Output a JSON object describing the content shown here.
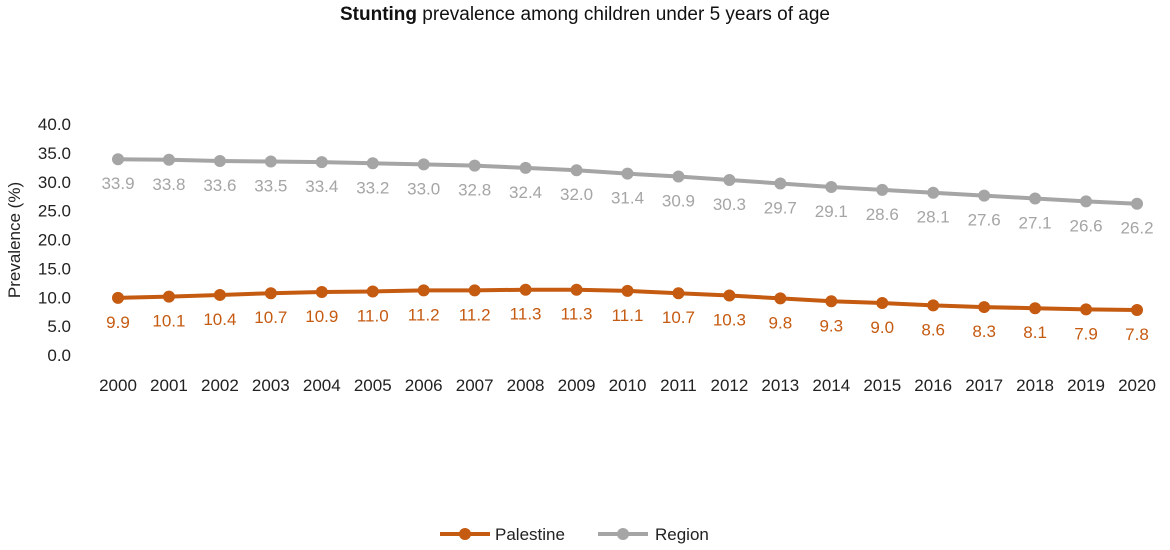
{
  "chart_data": {
    "type": "line",
    "title_bold": "Stunting",
    "title_rest": " prevalence among children under 5 years of age",
    "ylabel": "Prevalence (%)",
    "xlabel": "",
    "ylim": [
      0,
      40
    ],
    "yticks": [
      "0.0",
      "5.0",
      "10.0",
      "15.0",
      "20.0",
      "25.0",
      "30.0",
      "35.0",
      "40.0"
    ],
    "grid": false,
    "legend_position": "bottom-center",
    "x": [
      "2000",
      "2001",
      "2002",
      "2003",
      "2004",
      "2005",
      "2006",
      "2007",
      "2008",
      "2009",
      "2010",
      "2011",
      "2012",
      "2013",
      "2014",
      "2015",
      "2016",
      "2017",
      "2018",
      "2019",
      "2020"
    ],
    "series": [
      {
        "name": "Palestine",
        "color": "#C55A11",
        "values": [
          9.9,
          10.1,
          10.4,
          10.7,
          10.9,
          11.0,
          11.2,
          11.2,
          11.3,
          11.3,
          11.1,
          10.7,
          10.3,
          9.8,
          9.3,
          9.0,
          8.6,
          8.3,
          8.1,
          7.9,
          7.8
        ],
        "labels": [
          "9.9",
          "10.1",
          "10.4",
          "10.7",
          "10.9",
          "11.0",
          "11.2",
          "11.2",
          "11.3",
          "11.3",
          "11.1",
          "10.7",
          "10.3",
          "9.8",
          "9.3",
          "9.0",
          "8.6",
          "8.3",
          "8.1",
          "7.9",
          "7.8"
        ]
      },
      {
        "name": "Region",
        "color": "#A5A5A5",
        "label_color": "#A5A5A5",
        "values": [
          33.9,
          33.8,
          33.6,
          33.5,
          33.4,
          33.2,
          33.0,
          32.8,
          32.4,
          32.0,
          31.4,
          30.9,
          30.3,
          29.7,
          29.1,
          28.6,
          28.1,
          27.6,
          27.1,
          26.6,
          26.2
        ],
        "labels": [
          "33.9",
          "33.8",
          "33.6",
          "33.5",
          "33.4",
          "33.2",
          "33.0",
          "32.8",
          "32.4",
          "32.0",
          "31.4",
          "30.9",
          "30.3",
          "29.7",
          "29.1",
          "28.6",
          "28.1",
          "27.6",
          "27.1",
          "26.6",
          "26.2"
        ]
      }
    ]
  }
}
